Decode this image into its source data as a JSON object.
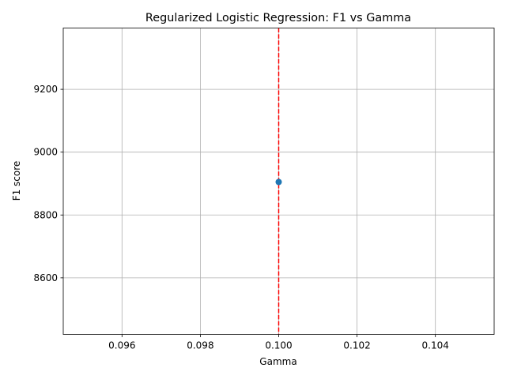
{
  "chart_data": {
    "type": "scatter",
    "title": "Regularized Logistic Regression: F1 vs Gamma",
    "xlabel": "Gamma",
    "ylabel": "F1 score",
    "xlim": [
      0.0945,
      0.1055
    ],
    "ylim": [
      8420,
      9395
    ],
    "xticks": [
      0.096,
      0.098,
      0.1,
      0.102,
      0.104
    ],
    "xtick_labels": [
      "0.096",
      "0.098",
      "0.100",
      "0.102",
      "0.104"
    ],
    "yticks": [
      8600,
      8800,
      9000,
      9200
    ],
    "ytick_labels": [
      "8600",
      "8800",
      "9000",
      "9200"
    ],
    "grid": true,
    "series": [
      {
        "x": [
          0.1
        ],
        "y": [
          8905
        ],
        "color": "#1f77b4"
      }
    ],
    "reference_line": {
      "orientation": "vertical",
      "x": 0.1,
      "style": "dashed",
      "color": "#ff0000"
    }
  }
}
